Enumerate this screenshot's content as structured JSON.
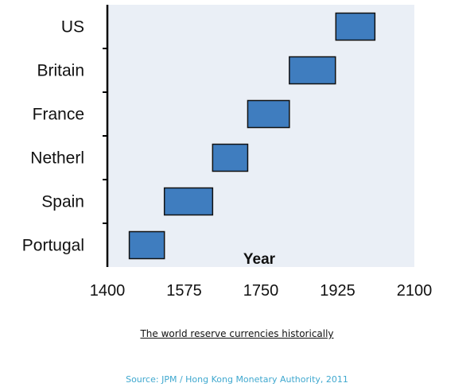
{
  "chart_data": {
    "type": "gantt",
    "xlabel": "Year",
    "xlim": [
      1400,
      2100
    ],
    "x_ticks": [
      "1400",
      "1575",
      "1750",
      "1925",
      "2100"
    ],
    "categories": [
      "US",
      "Britain",
      "France",
      "Netherl",
      "Spain",
      "Portugal"
    ],
    "bars": [
      {
        "label": "US",
        "start": 1921,
        "end": 2010
      },
      {
        "label": "Britain",
        "start": 1815,
        "end": 1920
      },
      {
        "label": "France",
        "start": 1720,
        "end": 1815
      },
      {
        "label": "Netherl",
        "start": 1640,
        "end": 1720
      },
      {
        "label": "Spain",
        "start": 1530,
        "end": 1640
      },
      {
        "label": "Portugal",
        "start": 1450,
        "end": 1530
      }
    ],
    "bar_color": "#3f7dbf",
    "plot_background": "#eaeff6"
  },
  "caption": "The world reserve currencies historically",
  "source": "Source: JPM / Hong Kong Monetary Authority, 2011",
  "colors": {
    "source_text": "#3fa8cf"
  }
}
